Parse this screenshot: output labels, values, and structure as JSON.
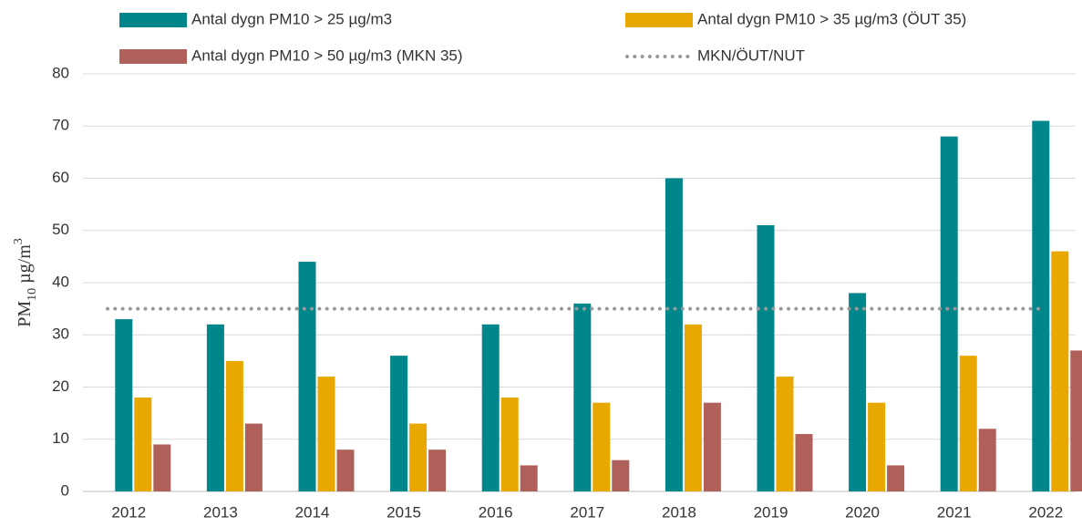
{
  "chart_data": {
    "type": "bar",
    "categories": [
      "2012",
      "2013",
      "2014",
      "2015",
      "2016",
      "2017",
      "2018",
      "2019",
      "2020",
      "2021",
      "2022"
    ],
    "series": [
      {
        "name": "Antal dygn PM10 > 25 µg/m3",
        "color": "#00868b",
        "values": [
          33,
          32,
          44,
          26,
          32,
          36,
          60,
          51,
          38,
          68,
          71
        ]
      },
      {
        "name": "Antal dygn PM10 > 35 µg/m3 (ÖUT 35)",
        "color": "#e9a800",
        "values": [
          18,
          25,
          22,
          13,
          18,
          17,
          32,
          22,
          17,
          26,
          46
        ]
      },
      {
        "name": "Antal dygn PM10 > 50 µg/m3 (MKN 35)",
        "color": "#b0605a",
        "values": [
          9,
          13,
          8,
          8,
          5,
          6,
          17,
          11,
          5,
          12,
          27
        ]
      }
    ],
    "threshold": {
      "name": "MKN/ÖUT/NUT",
      "value": 35,
      "color": "#999999"
    },
    "ylabel": [
      "PM",
      "10",
      " µg/m",
      "3"
    ],
    "ylim": [
      0,
      80
    ],
    "yticks": [
      0,
      10,
      20,
      30,
      40,
      50,
      60,
      70,
      80
    ],
    "grid": true
  }
}
